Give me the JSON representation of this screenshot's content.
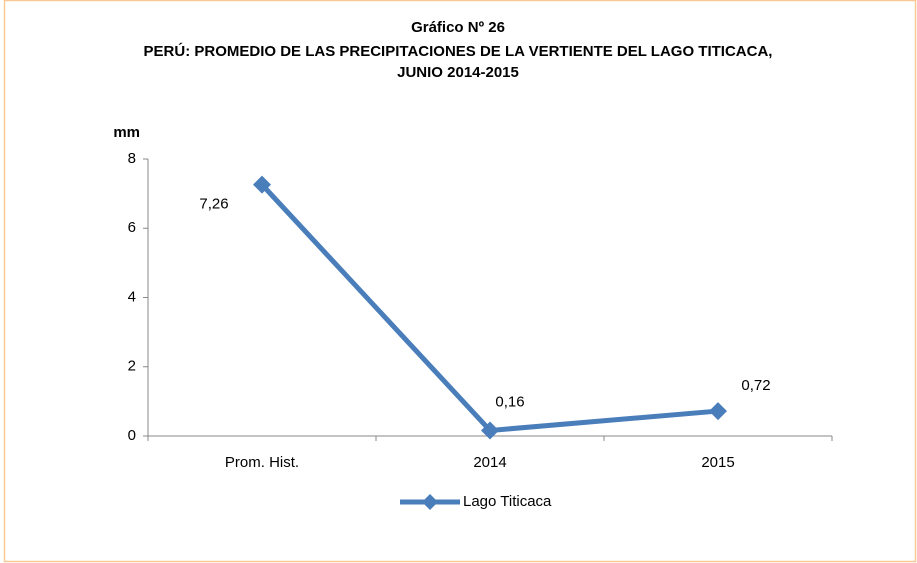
{
  "chart_data": {
    "type": "line",
    "title": "Gráfico Nº 26",
    "subtitle": [
      "PERÚ: PROMEDIO DE LAS PRECIPITACIONES DE LA VERTIENTE DEL LAGO TITICACA,",
      "JUNIO 2014-2015"
    ],
    "y_label": "mm",
    "categories": [
      "Prom. Hist.",
      "2014",
      "2015"
    ],
    "series": [
      {
        "name": "Lago Titicaca",
        "color": "#4a7ebb",
        "values": [
          7.26,
          0.16,
          0.72
        ],
        "value_labels": [
          "7,26",
          "0,16",
          "0,72"
        ]
      }
    ],
    "ylim": [
      0,
      8
    ],
    "yticks": [
      0,
      2,
      4,
      6,
      8
    ],
    "legend": "bottom"
  }
}
